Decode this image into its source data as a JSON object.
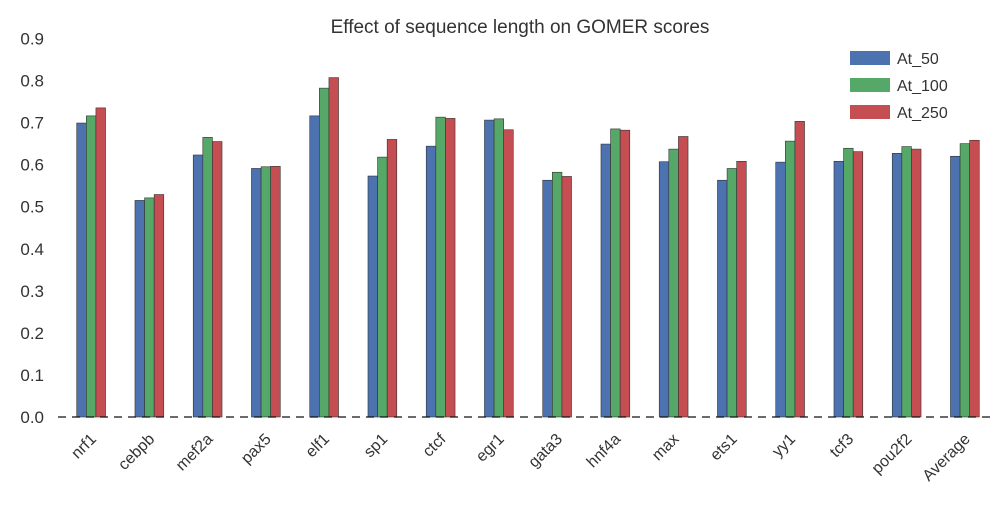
{
  "chart_data": {
    "type": "bar",
    "title": "Effect of sequence length on GOMER scores",
    "xlabel": "",
    "ylabel": "",
    "ylim": [
      0,
      0.9
    ],
    "yticks": [
      "0.0",
      "0.1",
      "0.2",
      "0.3",
      "0.4",
      "0.5",
      "0.6",
      "0.7",
      "0.8",
      "0.9"
    ],
    "grid": false,
    "legend_position": "top-right",
    "categories": [
      "nrf1",
      "cebpb",
      "mef2a",
      "pax5",
      "elf1",
      "sp1",
      "ctcf",
      "egr1",
      "gata3",
      "hnf4a",
      "max",
      "ets1",
      "yy1",
      "tcf3",
      "pou2f2",
      "Average"
    ],
    "series": [
      {
        "name": "At_50",
        "color": "#4c72b0",
        "values": [
          0.699,
          0.515,
          0.623,
          0.591,
          0.716,
          0.573,
          0.644,
          0.706,
          0.563,
          0.649,
          0.607,
          0.563,
          0.606,
          0.608,
          0.627,
          0.62
        ]
      },
      {
        "name": "At_100",
        "color": "#55a868",
        "values": [
          0.716,
          0.521,
          0.665,
          0.595,
          0.782,
          0.618,
          0.713,
          0.709,
          0.582,
          0.685,
          0.637,
          0.591,
          0.656,
          0.639,
          0.643,
          0.65
        ]
      },
      {
        "name": "At_250",
        "color": "#c44e52",
        "values": [
          0.735,
          0.529,
          0.655,
          0.596,
          0.807,
          0.66,
          0.71,
          0.683,
          0.572,
          0.682,
          0.667,
          0.608,
          0.703,
          0.631,
          0.637,
          0.658
        ]
      }
    ]
  }
}
